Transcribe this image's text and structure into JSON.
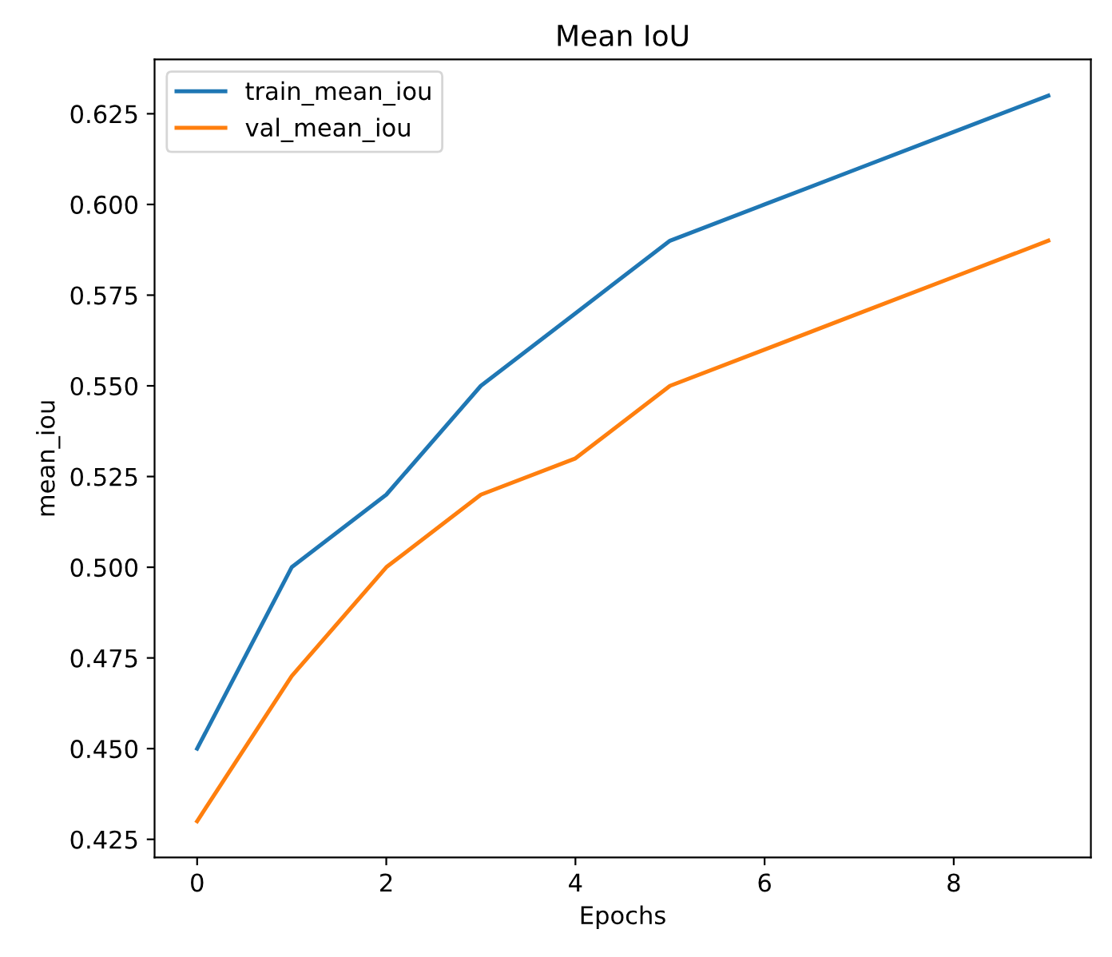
{
  "chart_data": {
    "type": "line",
    "title": "Mean IoU",
    "xlabel": "Epochs",
    "ylabel": "mean_iou",
    "x": [
      0,
      1,
      2,
      3,
      4,
      5,
      6,
      7,
      8,
      9
    ],
    "series": [
      {
        "name": "train_mean_iou",
        "color": "#1f77b4",
        "values": [
          0.45,
          0.5,
          0.52,
          0.55,
          0.57,
          0.59,
          0.6,
          0.61,
          0.62,
          0.63
        ]
      },
      {
        "name": "val_mean_iou",
        "color": "#ff7f0e",
        "values": [
          0.43,
          0.47,
          0.5,
          0.52,
          0.53,
          0.55,
          0.56,
          0.57,
          0.58,
          0.59
        ]
      }
    ],
    "xlim": [
      -0.45,
      9.45
    ],
    "xticks": [
      0,
      2,
      4,
      6,
      8
    ],
    "ylim": [
      0.42,
      0.64
    ],
    "yticks": [
      {
        "value": 0.425,
        "label": "0.425"
      },
      {
        "value": 0.45,
        "label": "0.450"
      },
      {
        "value": 0.475,
        "label": "0.475"
      },
      {
        "value": 0.5,
        "label": "0.500"
      },
      {
        "value": 0.525,
        "label": "0.525"
      },
      {
        "value": 0.55,
        "label": "0.550"
      },
      {
        "value": 0.575,
        "label": "0.575"
      },
      {
        "value": 0.6,
        "label": "0.600"
      },
      {
        "value": 0.625,
        "label": "0.625"
      }
    ],
    "grid": false,
    "legend": "top left",
    "marker": "none",
    "line_style": "solid"
  }
}
